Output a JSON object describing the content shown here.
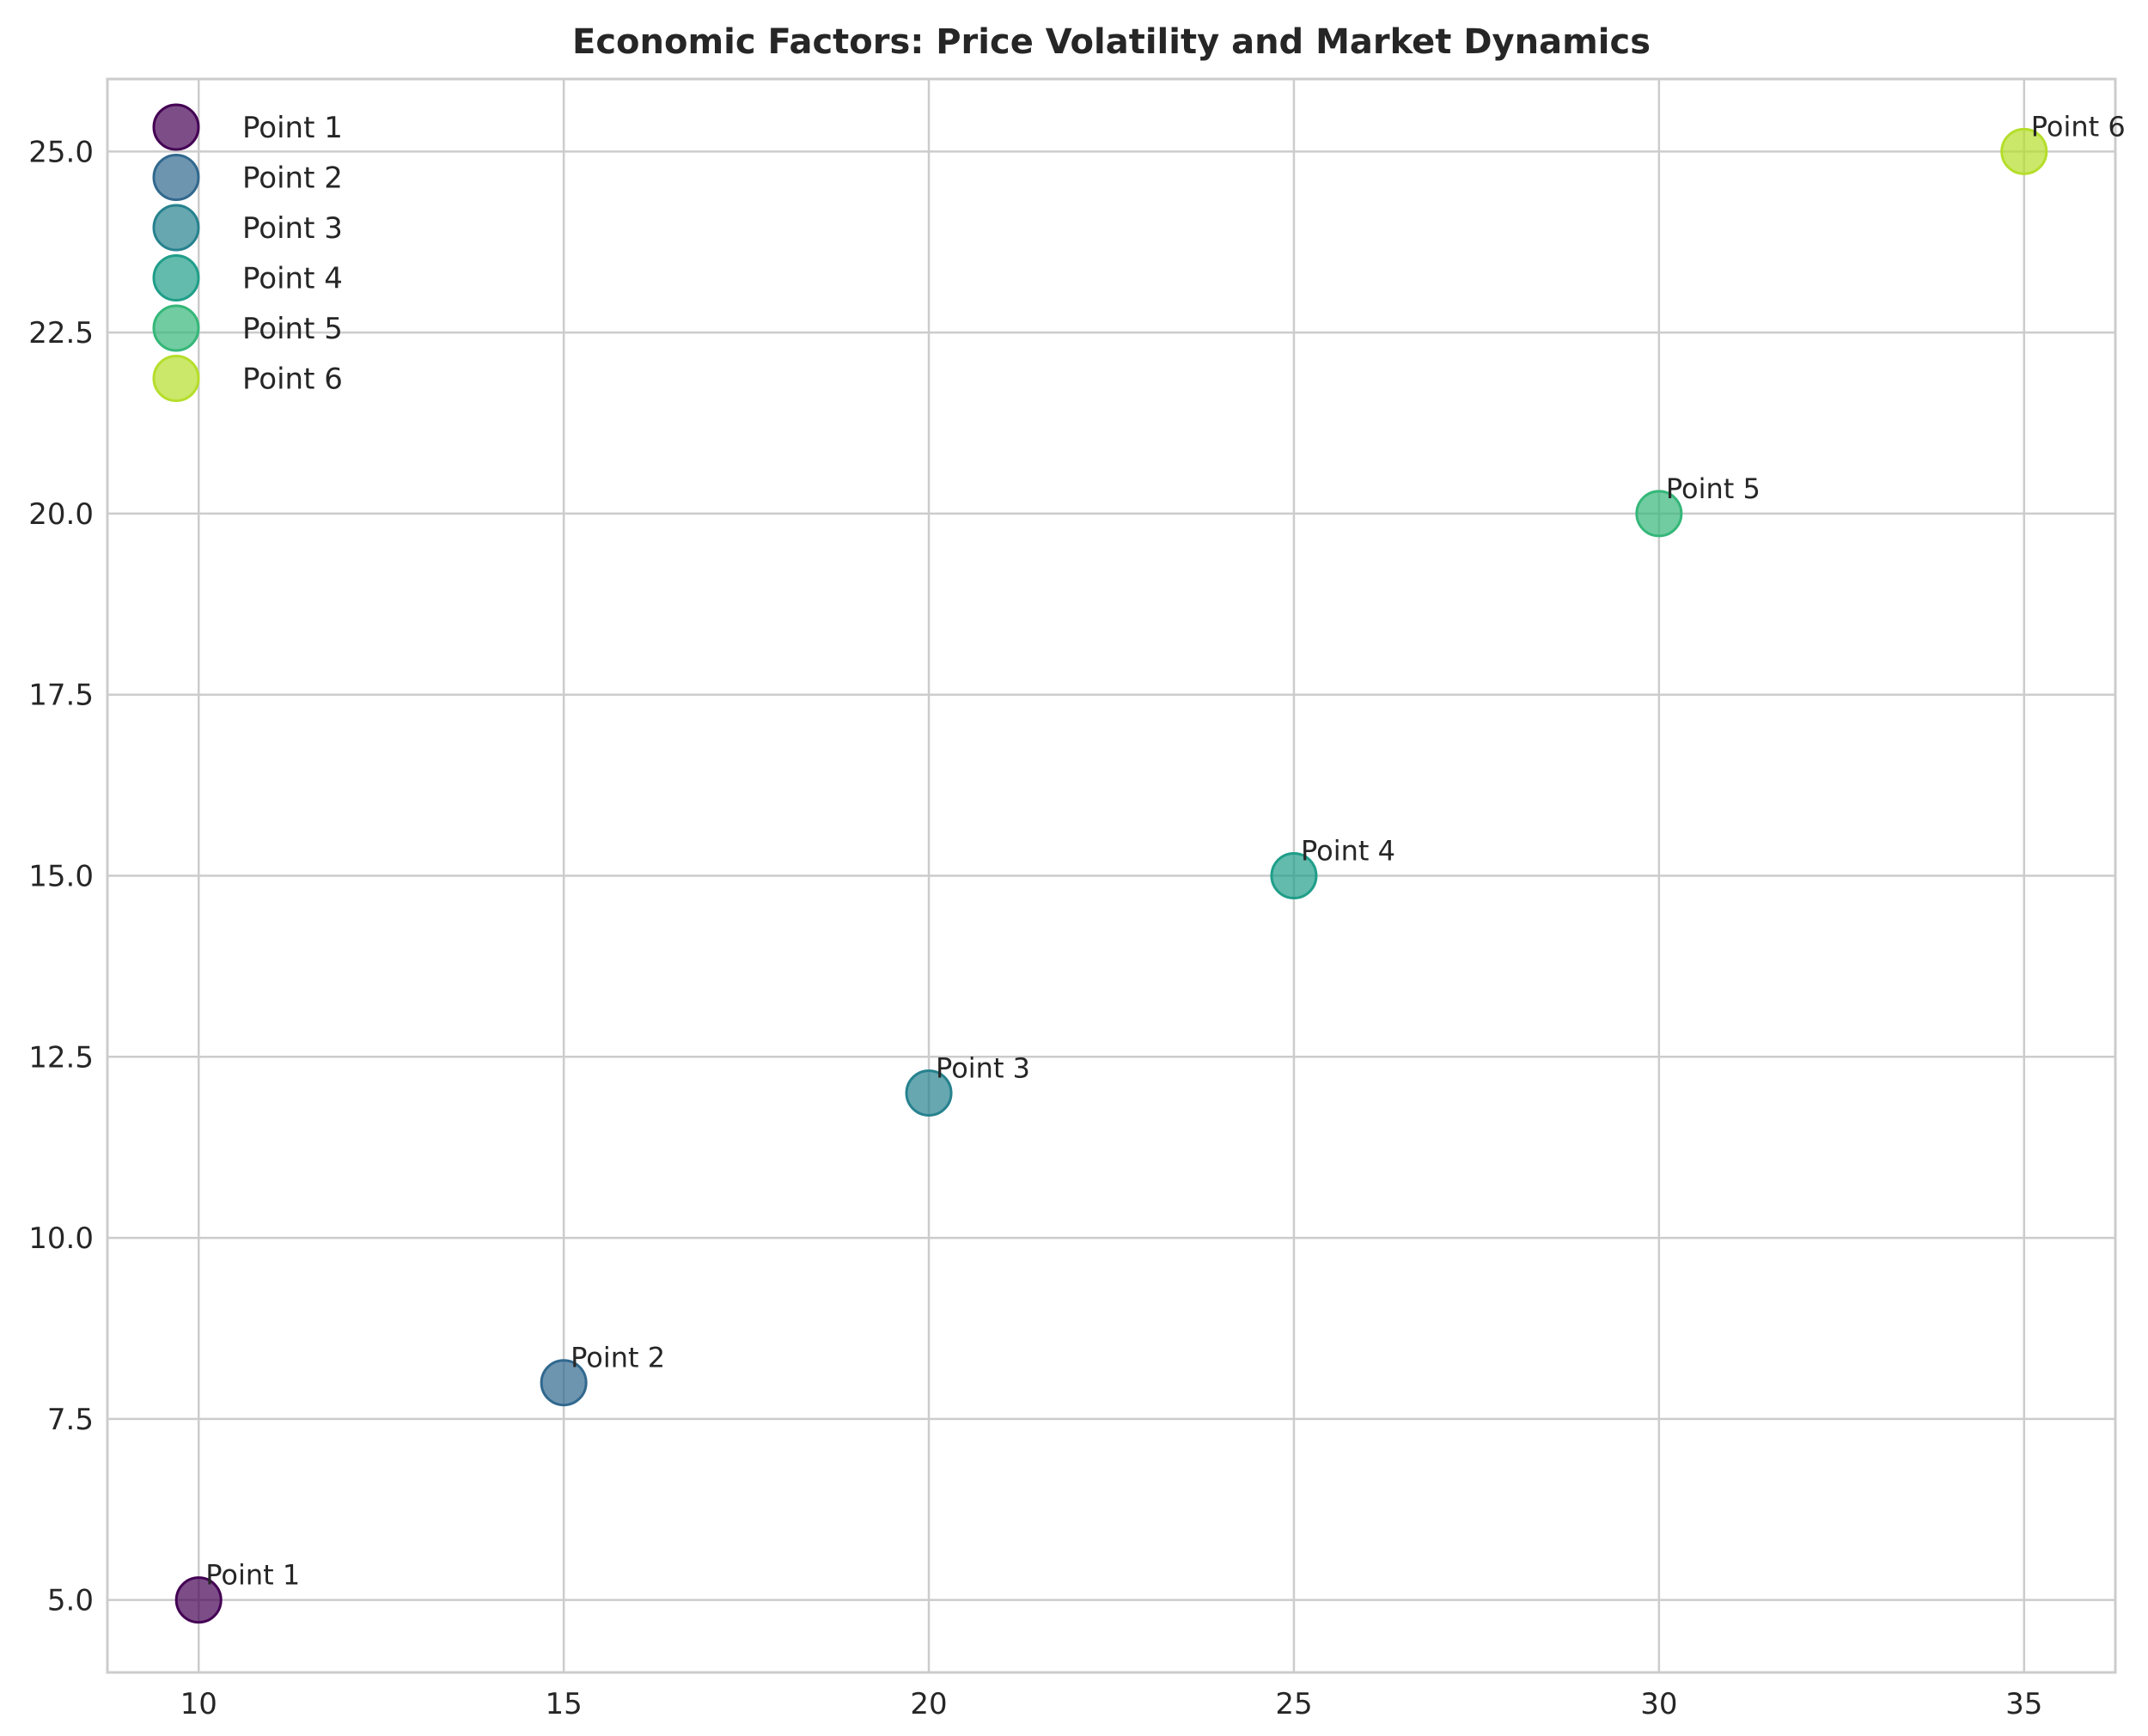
{
  "chart_data": {
    "type": "scatter",
    "title": "Economic Factors: Price Volatility and Market Dynamics",
    "xlabel": "",
    "ylabel": "",
    "xlim": [
      8.75,
      36.25
    ],
    "ylim": [
      4.0,
      26.0
    ],
    "x_ticks": [
      10,
      15,
      20,
      25,
      30,
      35
    ],
    "y_ticks": [
      5.0,
      7.5,
      10.0,
      12.5,
      15.0,
      17.5,
      20.0,
      22.5,
      25.0
    ],
    "grid": true,
    "legend_position": "top-left",
    "points": [
      {
        "label": "Point 1",
        "x": 10,
        "y": 5,
        "color": "#440154"
      },
      {
        "label": "Point 2",
        "x": 15,
        "y": 8,
        "color": "#31688e"
      },
      {
        "label": "Point 3",
        "x": 20,
        "y": 12,
        "color": "#26828e"
      },
      {
        "label": "Point 4",
        "x": 25,
        "y": 15,
        "color": "#1f9e89"
      },
      {
        "label": "Point 5",
        "x": 30,
        "y": 20,
        "color": "#35b779"
      },
      {
        "label": "Point 6",
        "x": 35,
        "y": 25,
        "color": "#b5de2b"
      }
    ]
  }
}
